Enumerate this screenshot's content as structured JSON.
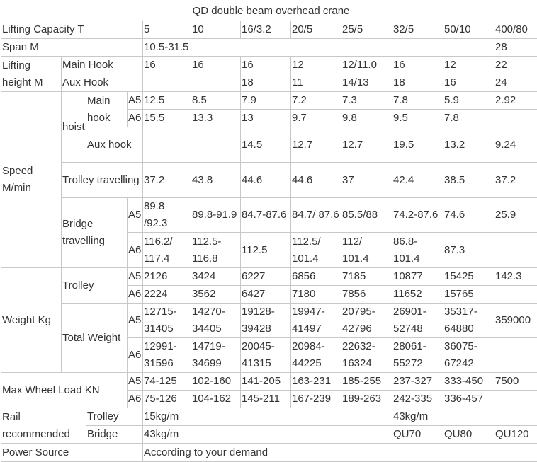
{
  "table": {
    "title": "QD double beam overhead crane",
    "rows": [
      [
        "Lifting Capacity   T",
        "5",
        "10",
        "16/3.2",
        "20/5",
        "25/5",
        "32/5",
        "50/10",
        "400/80"
      ],
      [
        "Span  M",
        "10.5-31.5",
        "28"
      ],
      [
        "Lifting height M",
        "Main Hook",
        "16",
        "16",
        "16",
        "12",
        "12/11.0",
        "16",
        "12",
        "22"
      ],
      [
        "Aux Hook",
        "18",
        "11",
        "14/13",
        "18",
        "16",
        "24"
      ],
      [
        "Speed M/min",
        "hoist",
        "Main hook",
        "A5",
        "12.5",
        "8.5",
        "7.9",
        "7.2",
        "7.3",
        "7.8",
        "5.9",
        "2.92"
      ],
      [
        "A6",
        "15.5",
        "13.3",
        "13",
        "9.7",
        "9.8",
        "9.5",
        "7.8"
      ],
      [
        "Aux hook",
        "14.5",
        "12.7",
        "12.7",
        "19.5",
        "13.2",
        "9.24"
      ],
      [
        "Trolley travelling",
        "37.2",
        "43.8",
        "44.6",
        "44.6",
        "37",
        "42.4",
        "38.5",
        "37.2"
      ],
      [
        "Bridge travelling",
        "A5",
        "89.8 /92.3",
        "89.8-91.9",
        "84.7-87.6",
        "84.7/ 87.6",
        "85.5/88",
        "74.2-87.6",
        "74.6",
        "25.9"
      ],
      [
        "A6",
        "116.2/ 117.4",
        "112.5- 116.8",
        "112.5",
        "112.5/ 101.4",
        "112/ 101.4",
        "86.8- 101.4",
        "87.3"
      ],
      [
        "Weight  Kg",
        "Trolley",
        "A5",
        "2126",
        "3424",
        "6227",
        "6856",
        "7185",
        "10877",
        "15425",
        "142.3"
      ],
      [
        "A6",
        "2224",
        "3562",
        "6427",
        "7180",
        "7856",
        "11652",
        "15765"
      ],
      [
        "Total Weight",
        "A5",
        "12715-31405",
        "14270-34405",
        "19128-39428",
        "19947-41497",
        "20795-42796",
        "26901-52748",
        "35317-64880",
        "359000"
      ],
      [
        "A6",
        "12991-31596",
        "14719-34699",
        "20045-41315",
        "20984-44225",
        "22632-16324",
        "28061-55272",
        "36075-67242"
      ],
      [
        "Max Wheel Load KN",
        "A5",
        "74-125",
        "102-160",
        "141-205",
        "163-231",
        "185-255",
        "237-327",
        "333-450",
        "7500"
      ],
      [
        "A6",
        "75-126",
        "104-162",
        "145-211",
        "167-239",
        "189-263",
        "242-335",
        "336-457"
      ],
      [
        "Rail recommended",
        "Trolley",
        "15kg/m",
        "43kg/m"
      ],
      [
        "Bridge",
        "43kg/m",
        "QU70",
        "QU80",
        "QU120"
      ],
      [
        "Power Source",
        "According to your demand"
      ]
    ]
  }
}
